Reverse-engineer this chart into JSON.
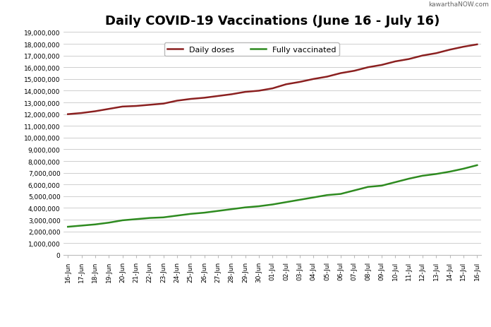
{
  "title": "Daily COVID-19 Vaccinations (June 16 - July 16)",
  "watermark": "kawarthaNOW.com",
  "x_labels": [
    "16-Jun",
    "17-Jun",
    "18-Jun",
    "19-Jun",
    "20-Jun",
    "21-Jun",
    "22-Jun",
    "23-Jun",
    "24-Jun",
    "25-Jun",
    "26-Jun",
    "27-Jun",
    "28-Jun",
    "29-Jun",
    "30-Jun",
    "01-Jul",
    "02-Jul",
    "03-Jul",
    "04-Jul",
    "05-Jul",
    "06-Jul",
    "07-Jul",
    "08-Jul",
    "09-Jul",
    "10-Jul",
    "11-Jul",
    "12-Jul",
    "13-Jul",
    "14-Jul",
    "15-Jul",
    "16-Jul"
  ],
  "daily_doses": [
    12000000,
    12100000,
    12250000,
    12450000,
    12650000,
    12700000,
    12800000,
    12900000,
    13150000,
    13300000,
    13400000,
    13550000,
    13700000,
    13900000,
    14000000,
    14200000,
    14550000,
    14750000,
    15000000,
    15200000,
    15500000,
    15700000,
    16000000,
    16200000,
    16500000,
    16700000,
    17000000,
    17200000,
    17500000,
    17750000,
    17950000
  ],
  "fully_vaccinated": [
    2400000,
    2500000,
    2600000,
    2750000,
    2950000,
    3050000,
    3150000,
    3200000,
    3350000,
    3500000,
    3600000,
    3750000,
    3900000,
    4050000,
    4150000,
    4300000,
    4500000,
    4700000,
    4900000,
    5100000,
    5200000,
    5500000,
    5800000,
    5900000,
    6200000,
    6500000,
    6750000,
    6900000,
    7100000,
    7350000,
    7650000
  ],
  "line_color_doses": "#8B2020",
  "line_color_vaccinated": "#2E8B20",
  "legend_label_doses": "Daily doses",
  "legend_label_vaccinated": "Fully vaccinated",
  "ylim": [
    0,
    19000000
  ],
  "yticks": [
    0,
    1000000,
    2000000,
    3000000,
    4000000,
    5000000,
    6000000,
    7000000,
    8000000,
    9000000,
    10000000,
    11000000,
    12000000,
    13000000,
    14000000,
    15000000,
    16000000,
    17000000,
    18000000,
    19000000
  ],
  "background_color": "#ffffff",
  "plot_bg_color": "#ffffff",
  "grid_color": "#bbbbbb",
  "title_fontsize": 13,
  "tick_fontsize": 6.5,
  "legend_fontsize": 8,
  "line_width": 1.8
}
